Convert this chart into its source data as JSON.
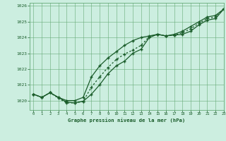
{
  "title": "Graphe pression niveau de la mer (hPa)",
  "bg_color": "#cceee0",
  "line_color": "#1a5c2a",
  "grid_color": "#66aa77",
  "xlim": [
    -0.5,
    23
  ],
  "ylim": [
    1019.4,
    1026.2
  ],
  "yticks": [
    1020,
    1021,
    1022,
    1023,
    1024,
    1025,
    1026
  ],
  "xticks": [
    0,
    1,
    2,
    3,
    4,
    5,
    6,
    7,
    8,
    9,
    10,
    11,
    12,
    13,
    14,
    15,
    16,
    17,
    18,
    19,
    20,
    21,
    22,
    23
  ],
  "series1_x": [
    0,
    1,
    2,
    3,
    4,
    5,
    6,
    7,
    8,
    9,
    10,
    11,
    12,
    13,
    14,
    15,
    16,
    17,
    18,
    19,
    20,
    21,
    22,
    23
  ],
  "series1_y": [
    1020.4,
    1020.2,
    1020.5,
    1020.2,
    1019.9,
    1019.85,
    1019.95,
    1020.4,
    1021.0,
    1021.7,
    1022.2,
    1022.5,
    1023.0,
    1023.25,
    1024.0,
    1024.2,
    1024.1,
    1024.15,
    1024.2,
    1024.4,
    1024.8,
    1025.1,
    1025.2,
    1025.8
  ],
  "series2_x": [
    0,
    1,
    2,
    3,
    4,
    5,
    6,
    7,
    8,
    9,
    10,
    11,
    12,
    13,
    14,
    15,
    16,
    17,
    18,
    19,
    20,
    21,
    22,
    23
  ],
  "series2_y": [
    1020.4,
    1020.2,
    1020.5,
    1020.2,
    1020.0,
    1020.0,
    1020.2,
    1021.5,
    1022.2,
    1022.7,
    1023.1,
    1023.5,
    1023.8,
    1024.0,
    1024.1,
    1024.2,
    1024.1,
    1024.2,
    1024.4,
    1024.7,
    1025.0,
    1025.3,
    1025.4,
    1025.8
  ],
  "series3_x": [
    0,
    1,
    2,
    3,
    4,
    5,
    6,
    7,
    8,
    9,
    10,
    11,
    12,
    13,
    14,
    15,
    16,
    17,
    18,
    19,
    20,
    21,
    22,
    23
  ],
  "series3_y": [
    1020.4,
    1020.2,
    1020.5,
    1020.15,
    1019.85,
    1019.85,
    1019.95,
    1020.85,
    1021.5,
    1022.1,
    1022.6,
    1022.95,
    1023.2,
    1023.5,
    1024.05,
    1024.2,
    1024.1,
    1024.15,
    1024.3,
    1024.55,
    1024.9,
    1025.2,
    1025.3,
    1025.85
  ]
}
